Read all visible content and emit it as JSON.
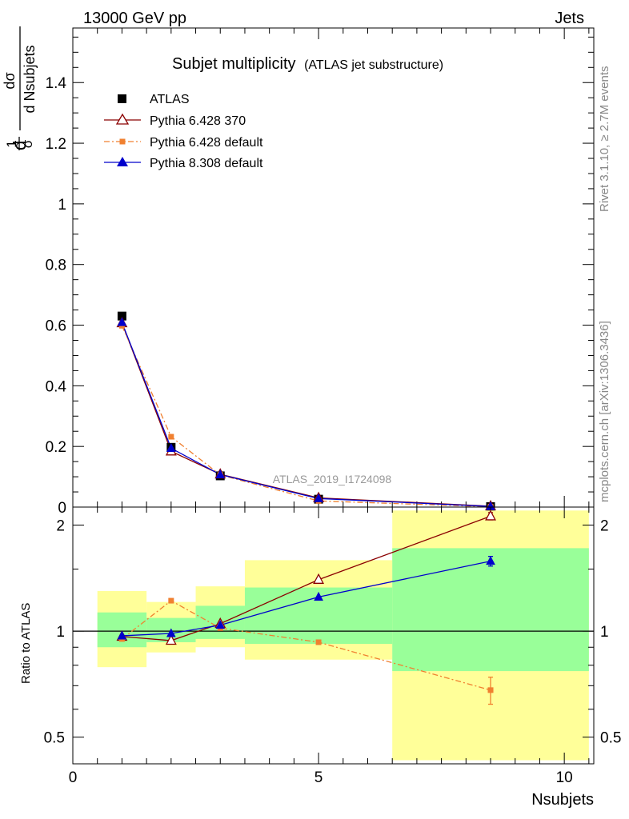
{
  "header": {
    "energy": "13000 GeV pp",
    "category": "Jets",
    "rivet": "Rivet 3.1.10, ≥ 2.7M events",
    "mcplots": "mcplots.cern.ch [arXiv:1306.3436]"
  },
  "chart_data": [
    {
      "type": "line",
      "title": "Subjet multiplicity",
      "subtitle": "(ATLAS jet substructure)",
      "analysis_id": "ATLAS_2019_I1724098",
      "ylabel_parts": [
        "d",
        "1",
        "σ",
        "dσ",
        "d Nsubjets"
      ],
      "xlim": [
        0,
        10.6
      ],
      "ylim": [
        0,
        1.58
      ],
      "yticks": [
        "0",
        "0.2",
        "0.4",
        "0.6",
        "0.8",
        "1",
        "1.2",
        "1.4"
      ],
      "ytick_values": [
        0,
        0.2,
        0.4,
        0.6,
        0.8,
        1.0,
        1.2,
        1.4
      ],
      "series": [
        {
          "name": "ATLAS",
          "color": "#000000",
          "marker": "square",
          "x": [
            1,
            2,
            3,
            5,
            8.5
          ],
          "y": [
            0.63,
            0.197,
            0.103,
            0.026,
            0.0014
          ]
        },
        {
          "name": "Pythia 6.428 370",
          "color": "#8b0000",
          "marker": "open-triangle",
          "line": "solid",
          "x": [
            1,
            2,
            3,
            5,
            8.5
          ],
          "y": [
            0.607,
            0.184,
            0.108,
            0.0302,
            0.003
          ]
        },
        {
          "name": "Pythia 6.428 default",
          "color": "#f08030",
          "marker": "small-square",
          "line": "dashdot",
          "x": [
            1,
            2,
            3,
            5,
            8.5
          ],
          "y": [
            0.598,
            0.232,
            0.106,
            0.0203,
            0.001
          ]
        },
        {
          "name": "Pythia 8.308 default",
          "color": "#0000cc",
          "marker": "triangle",
          "line": "solid",
          "x": [
            1,
            2,
            3,
            5,
            8.5
          ],
          "y": [
            0.609,
            0.194,
            0.107,
            0.0282,
            0.0022
          ]
        }
      ]
    },
    {
      "type": "line",
      "ylabel": "Ratio to ATLAS",
      "xlabel": "Nsubjets",
      "xlim": [
        0,
        10.6
      ],
      "xticks": [
        "0",
        "5",
        "10"
      ],
      "xtick_values": [
        0,
        5,
        10
      ],
      "ylim": [
        0.42,
        2.25
      ],
      "yticks": [
        "0.5",
        "1",
        "2"
      ],
      "ytick_values": [
        0.5,
        1,
        2
      ],
      "log_y": true,
      "bands": [
        {
          "x0": 0.5,
          "x1": 1.5,
          "stat_lo": 0.9,
          "stat_hi": 1.13,
          "tot_lo": 0.79,
          "tot_hi": 1.3
        },
        {
          "x0": 1.5,
          "x1": 2.5,
          "stat_lo": 0.93,
          "stat_hi": 1.09,
          "tot_lo": 0.87,
          "tot_hi": 1.21
        },
        {
          "x0": 2.5,
          "x1": 3.5,
          "stat_lo": 0.95,
          "stat_hi": 1.18,
          "tot_lo": 0.9,
          "tot_hi": 1.34
        },
        {
          "x0": 3.5,
          "x1": 6.5,
          "stat_lo": 0.92,
          "stat_hi": 1.33,
          "tot_lo": 0.83,
          "tot_hi": 1.59
        },
        {
          "x0": 6.5,
          "x1": 10.5,
          "stat_lo": 0.77,
          "stat_hi": 1.72,
          "tot_lo": 0.43,
          "tot_hi": 2.2
        }
      ],
      "series": [
        {
          "name": "Pythia 6.428 370",
          "color": "#8b0000",
          "marker": "open-triangle",
          "line": "solid",
          "x": [
            1,
            2,
            3,
            5,
            8.5
          ],
          "y": [
            0.965,
            0.94,
            1.05,
            1.4,
            2.12
          ],
          "err": [
            0,
            0,
            0,
            0,
            0.05
          ]
        },
        {
          "name": "Pythia 6.428 default",
          "color": "#f08030",
          "marker": "small-square",
          "line": "dashdot",
          "x": [
            1,
            2,
            3,
            5,
            8.5
          ],
          "y": [
            0.95,
            1.22,
            1.02,
            0.93,
            0.68
          ],
          "err": [
            0,
            0,
            0,
            0,
            0.06
          ]
        },
        {
          "name": "Pythia 8.308 default",
          "color": "#0000cc",
          "marker": "triangle",
          "line": "solid",
          "x": [
            1,
            2,
            3,
            5,
            8.5
          ],
          "y": [
            0.97,
            0.985,
            1.04,
            1.25,
            1.58
          ],
          "err": [
            0,
            0,
            0,
            0,
            0.05
          ]
        }
      ]
    }
  ]
}
